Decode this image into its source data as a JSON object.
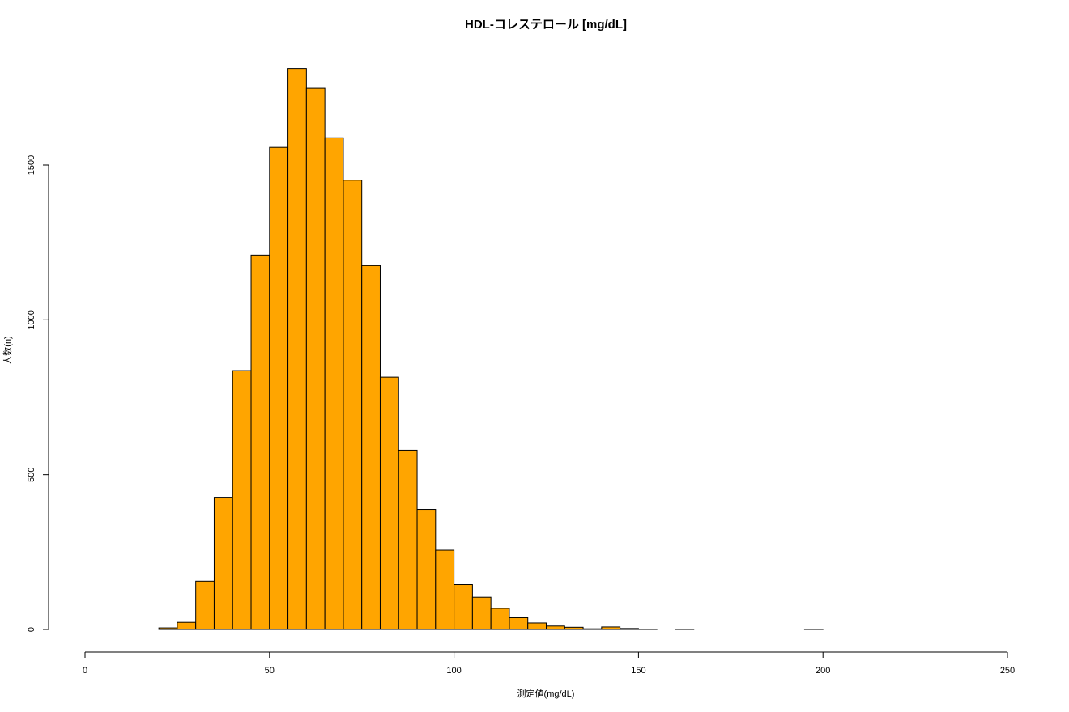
{
  "chart_data": {
    "type": "bar",
    "title": "HDL-コレステロール [mg/dL]",
    "xlabel": "測定値(mg/dL)",
    "ylabel": "人数(n)",
    "bar_color": "#FFA500",
    "bar_edge_color": "#000000",
    "bin_width": 5,
    "xlim": [
      0,
      250
    ],
    "ylim": [
      0,
      1810
    ],
    "x_ticks": [
      0,
      50,
      100,
      150,
      200,
      250
    ],
    "y_ticks": [
      0,
      500,
      1000,
      1500
    ],
    "bins": [
      {
        "start": 20,
        "end": 25,
        "count": 5
      },
      {
        "start": 25,
        "end": 30,
        "count": 23
      },
      {
        "start": 30,
        "end": 35,
        "count": 156
      },
      {
        "start": 35,
        "end": 40,
        "count": 427
      },
      {
        "start": 40,
        "end": 45,
        "count": 836
      },
      {
        "start": 45,
        "end": 50,
        "count": 1209
      },
      {
        "start": 50,
        "end": 55,
        "count": 1557
      },
      {
        "start": 55,
        "end": 60,
        "count": 1812
      },
      {
        "start": 60,
        "end": 65,
        "count": 1748
      },
      {
        "start": 65,
        "end": 70,
        "count": 1588
      },
      {
        "start": 70,
        "end": 75,
        "count": 1451
      },
      {
        "start": 75,
        "end": 80,
        "count": 1175
      },
      {
        "start": 80,
        "end": 85,
        "count": 815
      },
      {
        "start": 85,
        "end": 90,
        "count": 579
      },
      {
        "start": 90,
        "end": 95,
        "count": 388
      },
      {
        "start": 95,
        "end": 100,
        "count": 256
      },
      {
        "start": 100,
        "end": 105,
        "count": 145
      },
      {
        "start": 105,
        "end": 110,
        "count": 104
      },
      {
        "start": 110,
        "end": 115,
        "count": 68
      },
      {
        "start": 115,
        "end": 120,
        "count": 38
      },
      {
        "start": 120,
        "end": 125,
        "count": 21
      },
      {
        "start": 125,
        "end": 130,
        "count": 11
      },
      {
        "start": 130,
        "end": 135,
        "count": 7
      },
      {
        "start": 135,
        "end": 140,
        "count": 2
      },
      {
        "start": 140,
        "end": 145,
        "count": 8
      },
      {
        "start": 145,
        "end": 150,
        "count": 3
      },
      {
        "start": 150,
        "end": 155,
        "count": 1
      },
      {
        "start": 155,
        "end": 160,
        "count": 0
      },
      {
        "start": 160,
        "end": 165,
        "count": 1
      },
      {
        "start": 165,
        "end": 170,
        "count": 0
      },
      {
        "start": 170,
        "end": 175,
        "count": 0
      },
      {
        "start": 175,
        "end": 180,
        "count": 0
      },
      {
        "start": 180,
        "end": 185,
        "count": 0
      },
      {
        "start": 185,
        "end": 190,
        "count": 0
      },
      {
        "start": 190,
        "end": 195,
        "count": 0
      },
      {
        "start": 195,
        "end": 200,
        "count": 1
      }
    ]
  }
}
